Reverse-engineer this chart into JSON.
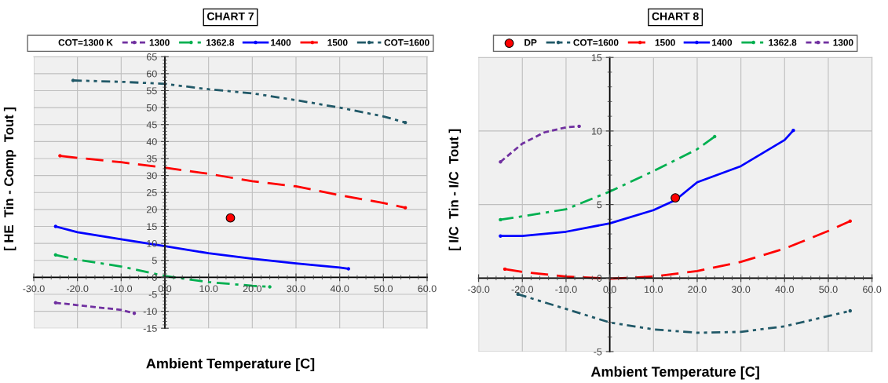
{
  "chart_data": [
    {
      "type": "line",
      "title": "CHART 7",
      "xlabel": "Ambient Temperature [C]",
      "ylabel": "[ HE  Tin - Comp  Tout ]",
      "legend_title": "COT=1300 K",
      "legend": "top",
      "grid": true,
      "marker": "none",
      "xlim": [
        -30,
        60
      ],
      "ylim": [
        -15,
        65
      ],
      "xticks": [
        {
          "value": -30,
          "label": "-30.0"
        },
        {
          "value": -20,
          "label": "-20.0"
        },
        {
          "value": -10,
          "label": "-10.0"
        },
        {
          "value": 0,
          "label": "0.0"
        },
        {
          "value": 10,
          "label": "10.0"
        },
        {
          "value": 20,
          "label": "20.0"
        },
        {
          "value": 30,
          "label": "30.0"
        },
        {
          "value": 40,
          "label": "40.0"
        },
        {
          "value": 50,
          "label": "50.0"
        },
        {
          "value": 60,
          "label": "60.0"
        }
      ],
      "yticks": [
        -15,
        -10,
        -5,
        0,
        5,
        10,
        15,
        20,
        25,
        30,
        35,
        40,
        45,
        50,
        55,
        60,
        65
      ],
      "series": [
        {
          "name": "1300",
          "color": "#7030a0",
          "line_style": "dotted",
          "x": [
            -25,
            -20,
            -10,
            -7
          ],
          "values": [
            -7.5,
            -8.2,
            -9.6,
            -10.6
          ]
        },
        {
          "name": "1362.8",
          "color": "#00b050",
          "line_style": "dashdot",
          "x": [
            -25,
            -20,
            -10,
            0,
            10,
            20,
            24
          ],
          "values": [
            6.6,
            5.2,
            3.2,
            0.4,
            -1.4,
            -2.5,
            -2.8
          ]
        },
        {
          "name": "1400",
          "color": "#0000ff",
          "line_style": "solid",
          "x": [
            -25,
            -20,
            -10,
            0,
            10,
            20,
            30,
            40,
            42
          ],
          "values": [
            15.0,
            13.3,
            11.2,
            9.2,
            7.1,
            5.5,
            4.1,
            2.9,
            2.5
          ]
        },
        {
          "name": "1500",
          "color": "#ff0000",
          "line_style": "dashed",
          "x": [
            -24,
            -20,
            -10,
            0,
            10,
            20,
            30,
            40,
            50,
            55
          ],
          "values": [
            35.8,
            35.2,
            33.9,
            32.3,
            30.5,
            28.3,
            26.8,
            24.2,
            21.9,
            20.5
          ]
        },
        {
          "name": "COT=1600",
          "color": "#215968",
          "line_style": "dashdotdot",
          "x": [
            -21,
            -10,
            0,
            10,
            20,
            30,
            40,
            50,
            55
          ],
          "values": [
            58,
            57.6,
            57,
            55.4,
            54.2,
            52.2,
            50,
            47.4,
            45.6
          ]
        },
        {
          "type": "scatter",
          "color": "#ff0000",
          "marker": "circle",
          "x": [
            15
          ],
          "values": [
            17.5
          ]
        }
      ]
    },
    {
      "type": "line",
      "title": "CHART 8",
      "xlabel": "Ambient Temperature [C]",
      "ylabel": "[ I/C  Tin - I/C  Tout ]",
      "legend": "top",
      "grid": true,
      "marker": "none",
      "xlim": [
        -30,
        60
      ],
      "ylim": [
        -5,
        15
      ],
      "xticks": [
        {
          "value": -30,
          "label": "-30.0"
        },
        {
          "value": -20,
          "label": "-20.0"
        },
        {
          "value": -10,
          "label": "-10.0"
        },
        {
          "value": 0,
          "label": "0.0"
        },
        {
          "value": 10,
          "label": "10.0"
        },
        {
          "value": 20,
          "label": "20.0"
        },
        {
          "value": 30,
          "label": "30.0"
        },
        {
          "value": 40,
          "label": "40.0"
        },
        {
          "value": 50,
          "label": "50.0"
        },
        {
          "value": 60,
          "label": "60.0"
        }
      ],
      "yticks": [
        -5,
        0,
        5,
        10,
        15
      ],
      "series": [
        {
          "name": "DP",
          "type": "scatter",
          "color": "#ff0000",
          "marker": "circle",
          "x": [
            15
          ],
          "values": [
            5.45
          ]
        },
        {
          "name": "COT=1600",
          "color": "#215968",
          "line_style": "dashdotdot",
          "x": [
            -21,
            -10,
            0,
            10,
            20,
            30,
            40,
            50,
            55
          ],
          "values": [
            -1.1,
            -2.1,
            -3.02,
            -3.49,
            -3.72,
            -3.66,
            -3.28,
            -2.58,
            -2.23
          ]
        },
        {
          "name": "1500",
          "color": "#ff0000",
          "line_style": "dashed",
          "x": [
            -24,
            -20,
            -10,
            0,
            10,
            20,
            30,
            40,
            50,
            55
          ],
          "values": [
            0.61,
            0.42,
            0.1,
            -0.04,
            0.1,
            0.48,
            1.1,
            2.0,
            3.2,
            3.87
          ]
        },
        {
          "name": "1400",
          "color": "#0000ff",
          "line_style": "solid",
          "x": [
            -25,
            -20,
            -10,
            0,
            10,
            15,
            20,
            30,
            40,
            42
          ],
          "values": [
            2.86,
            2.86,
            3.15,
            3.72,
            4.62,
            5.3,
            6.51,
            7.61,
            9.39,
            10.04
          ]
        },
        {
          "name": "1362.8",
          "color": "#00b050",
          "line_style": "dashdot",
          "x": [
            -25,
            -20,
            -10,
            0,
            10,
            20,
            24
          ],
          "values": [
            3.97,
            4.2,
            4.68,
            5.88,
            7.27,
            8.76,
            9.62
          ]
        },
        {
          "name": "1300",
          "color": "#7030a0",
          "line_style": "dotted",
          "x": [
            -25,
            -20,
            -15,
            -10,
            -7
          ],
          "values": [
            7.9,
            9.14,
            9.9,
            10.25,
            10.32
          ]
        }
      ]
    }
  ]
}
